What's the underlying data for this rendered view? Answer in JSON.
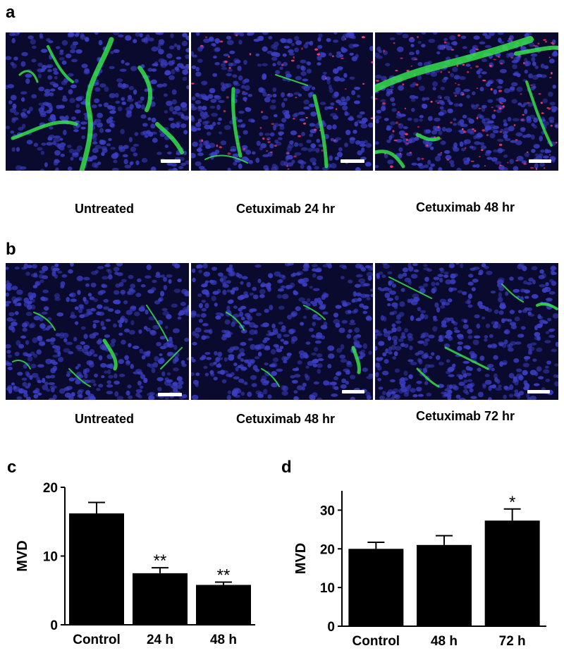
{
  "panel_a": {
    "letter": "a",
    "images": [
      {
        "caption": "Untreated"
      },
      {
        "caption": "Cetuximab 24 hr"
      },
      {
        "caption": "Cetuximab 48 hr"
      }
    ]
  },
  "panel_b": {
    "letter": "b",
    "images": [
      {
        "caption": "Untreated"
      },
      {
        "caption": "Cetuximab 48 hr"
      },
      {
        "caption": "Cetuximab 72 hr"
      }
    ]
  },
  "colors": {
    "nuclei": "#3b3fc4",
    "vessel": "#35e04a",
    "red_signal": "#ff3b6b",
    "bar": "#000000",
    "background_dark": "#0a0a2e"
  },
  "chart_data": [
    {
      "panel": "c",
      "type": "bar",
      "categories": [
        "Control",
        "24 h",
        "48 h"
      ],
      "values": [
        16.2,
        7.5,
        5.8
      ],
      "errors": [
        1.6,
        0.8,
        0.4
      ],
      "significance": [
        "",
        "**",
        "**"
      ],
      "ylabel": "MVD",
      "xlabel": "",
      "ylim": [
        0,
        20
      ],
      "yticks": [
        "0",
        "10",
        "20"
      ],
      "grid": false
    },
    {
      "panel": "d",
      "type": "bar",
      "categories": [
        "Control",
        "48 h",
        "72 h"
      ],
      "values": [
        20,
        21,
        27.3
      ],
      "errors": [
        1.7,
        2.4,
        3.0
      ],
      "significance": [
        "",
        "",
        "*"
      ],
      "ylabel": "MVD",
      "xlabel": "",
      "ylim": [
        0,
        35
      ],
      "yticks": [
        "0",
        "10",
        "20",
        "30"
      ],
      "grid": false
    }
  ]
}
